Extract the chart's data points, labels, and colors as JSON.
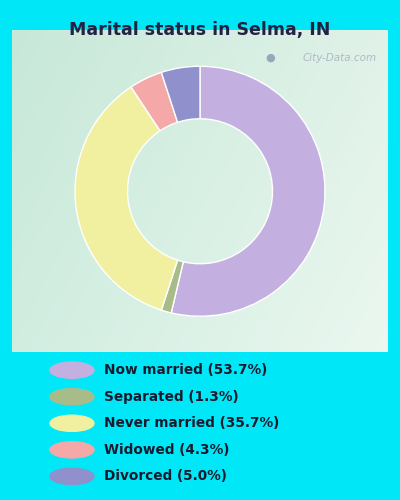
{
  "title": "Marital status in Selma, IN",
  "slices": [
    {
      "label": "Now married (53.7%)",
      "value": 53.7,
      "color": "#c4b0e0"
    },
    {
      "label": "Separated (1.3%)",
      "value": 1.3,
      "color": "#a8bc8a"
    },
    {
      "label": "Never married (35.7%)",
      "value": 35.7,
      "color": "#f0f0a0"
    },
    {
      "label": "Widowed (4.3%)",
      "value": 4.3,
      "color": "#f4a8a8"
    },
    {
      "label": "Divorced (5.0%)",
      "value": 5.0,
      "color": "#9090cc"
    }
  ],
  "cyan_bg": "#00e8f8",
  "chart_bg_tl": "#d0ece0",
  "chart_bg_tr": "#e8f4f0",
  "chart_bg_bl": "#daf4e8",
  "chart_bg_br": "#f0f8f4",
  "title_color": "#222244",
  "legend_text_color": "#1a1a2e",
  "watermark": "City-Data.com",
  "donut_width": 0.42,
  "startangle": 90
}
